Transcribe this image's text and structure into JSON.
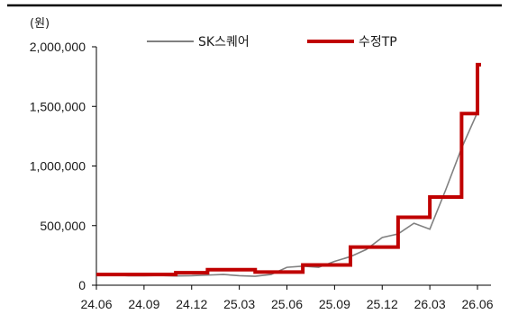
{
  "chart_data": {
    "type": "line",
    "unit_label": "(원)",
    "x_ticks": [
      "24.06",
      "24.09",
      "24.12",
      "25.03",
      "25.06",
      "25.09",
      "25.12",
      "26.03",
      "26.06"
    ],
    "y_ticks": [
      "0",
      "500,000",
      "1,000,000",
      "1,500,000",
      "2,000,000"
    ],
    "ylim": [
      0,
      2000000
    ],
    "xlim": [
      "24.06",
      "26.06"
    ],
    "grid": false,
    "legend_position": "top",
    "series": [
      {
        "name": "SK스퀘어",
        "color": "#808080",
        "style": "thin-line",
        "points": [
          [
            "24.06",
            85000
          ],
          [
            "24.07",
            88000
          ],
          [
            "24.08",
            80000
          ],
          [
            "24.09",
            80000
          ],
          [
            "24.10",
            82000
          ],
          [
            "24.11",
            78000
          ],
          [
            "24.12",
            80000
          ],
          [
            "25.01",
            85000
          ],
          [
            "25.02",
            90000
          ],
          [
            "25.03",
            80000
          ],
          [
            "25.04",
            75000
          ],
          [
            "25.05",
            90000
          ],
          [
            "25.06",
            150000
          ],
          [
            "25.07",
            160000
          ],
          [
            "25.08",
            150000
          ],
          [
            "25.09",
            200000
          ],
          [
            "25.10",
            240000
          ],
          [
            "25.11",
            300000
          ],
          [
            "25.12",
            400000
          ],
          [
            "26.01",
            430000
          ],
          [
            "26.02",
            520000
          ],
          [
            "26.03",
            470000
          ],
          [
            "26.04",
            800000
          ],
          [
            "26.05",
            1150000
          ],
          [
            "26.06",
            1450000
          ]
        ]
      },
      {
        "name": "수정TP",
        "color": "#c00000",
        "style": "thick-step",
        "points": [
          [
            "24.06",
            90000
          ],
          [
            "24.11",
            105000
          ],
          [
            "25.01",
            130000
          ],
          [
            "25.04",
            110000
          ],
          [
            "25.07",
            170000
          ],
          [
            "25.10",
            320000
          ],
          [
            "26.01",
            570000
          ],
          [
            "26.03",
            740000
          ],
          [
            "26.05",
            1440000
          ],
          [
            "26.06",
            1850000
          ]
        ]
      }
    ]
  }
}
